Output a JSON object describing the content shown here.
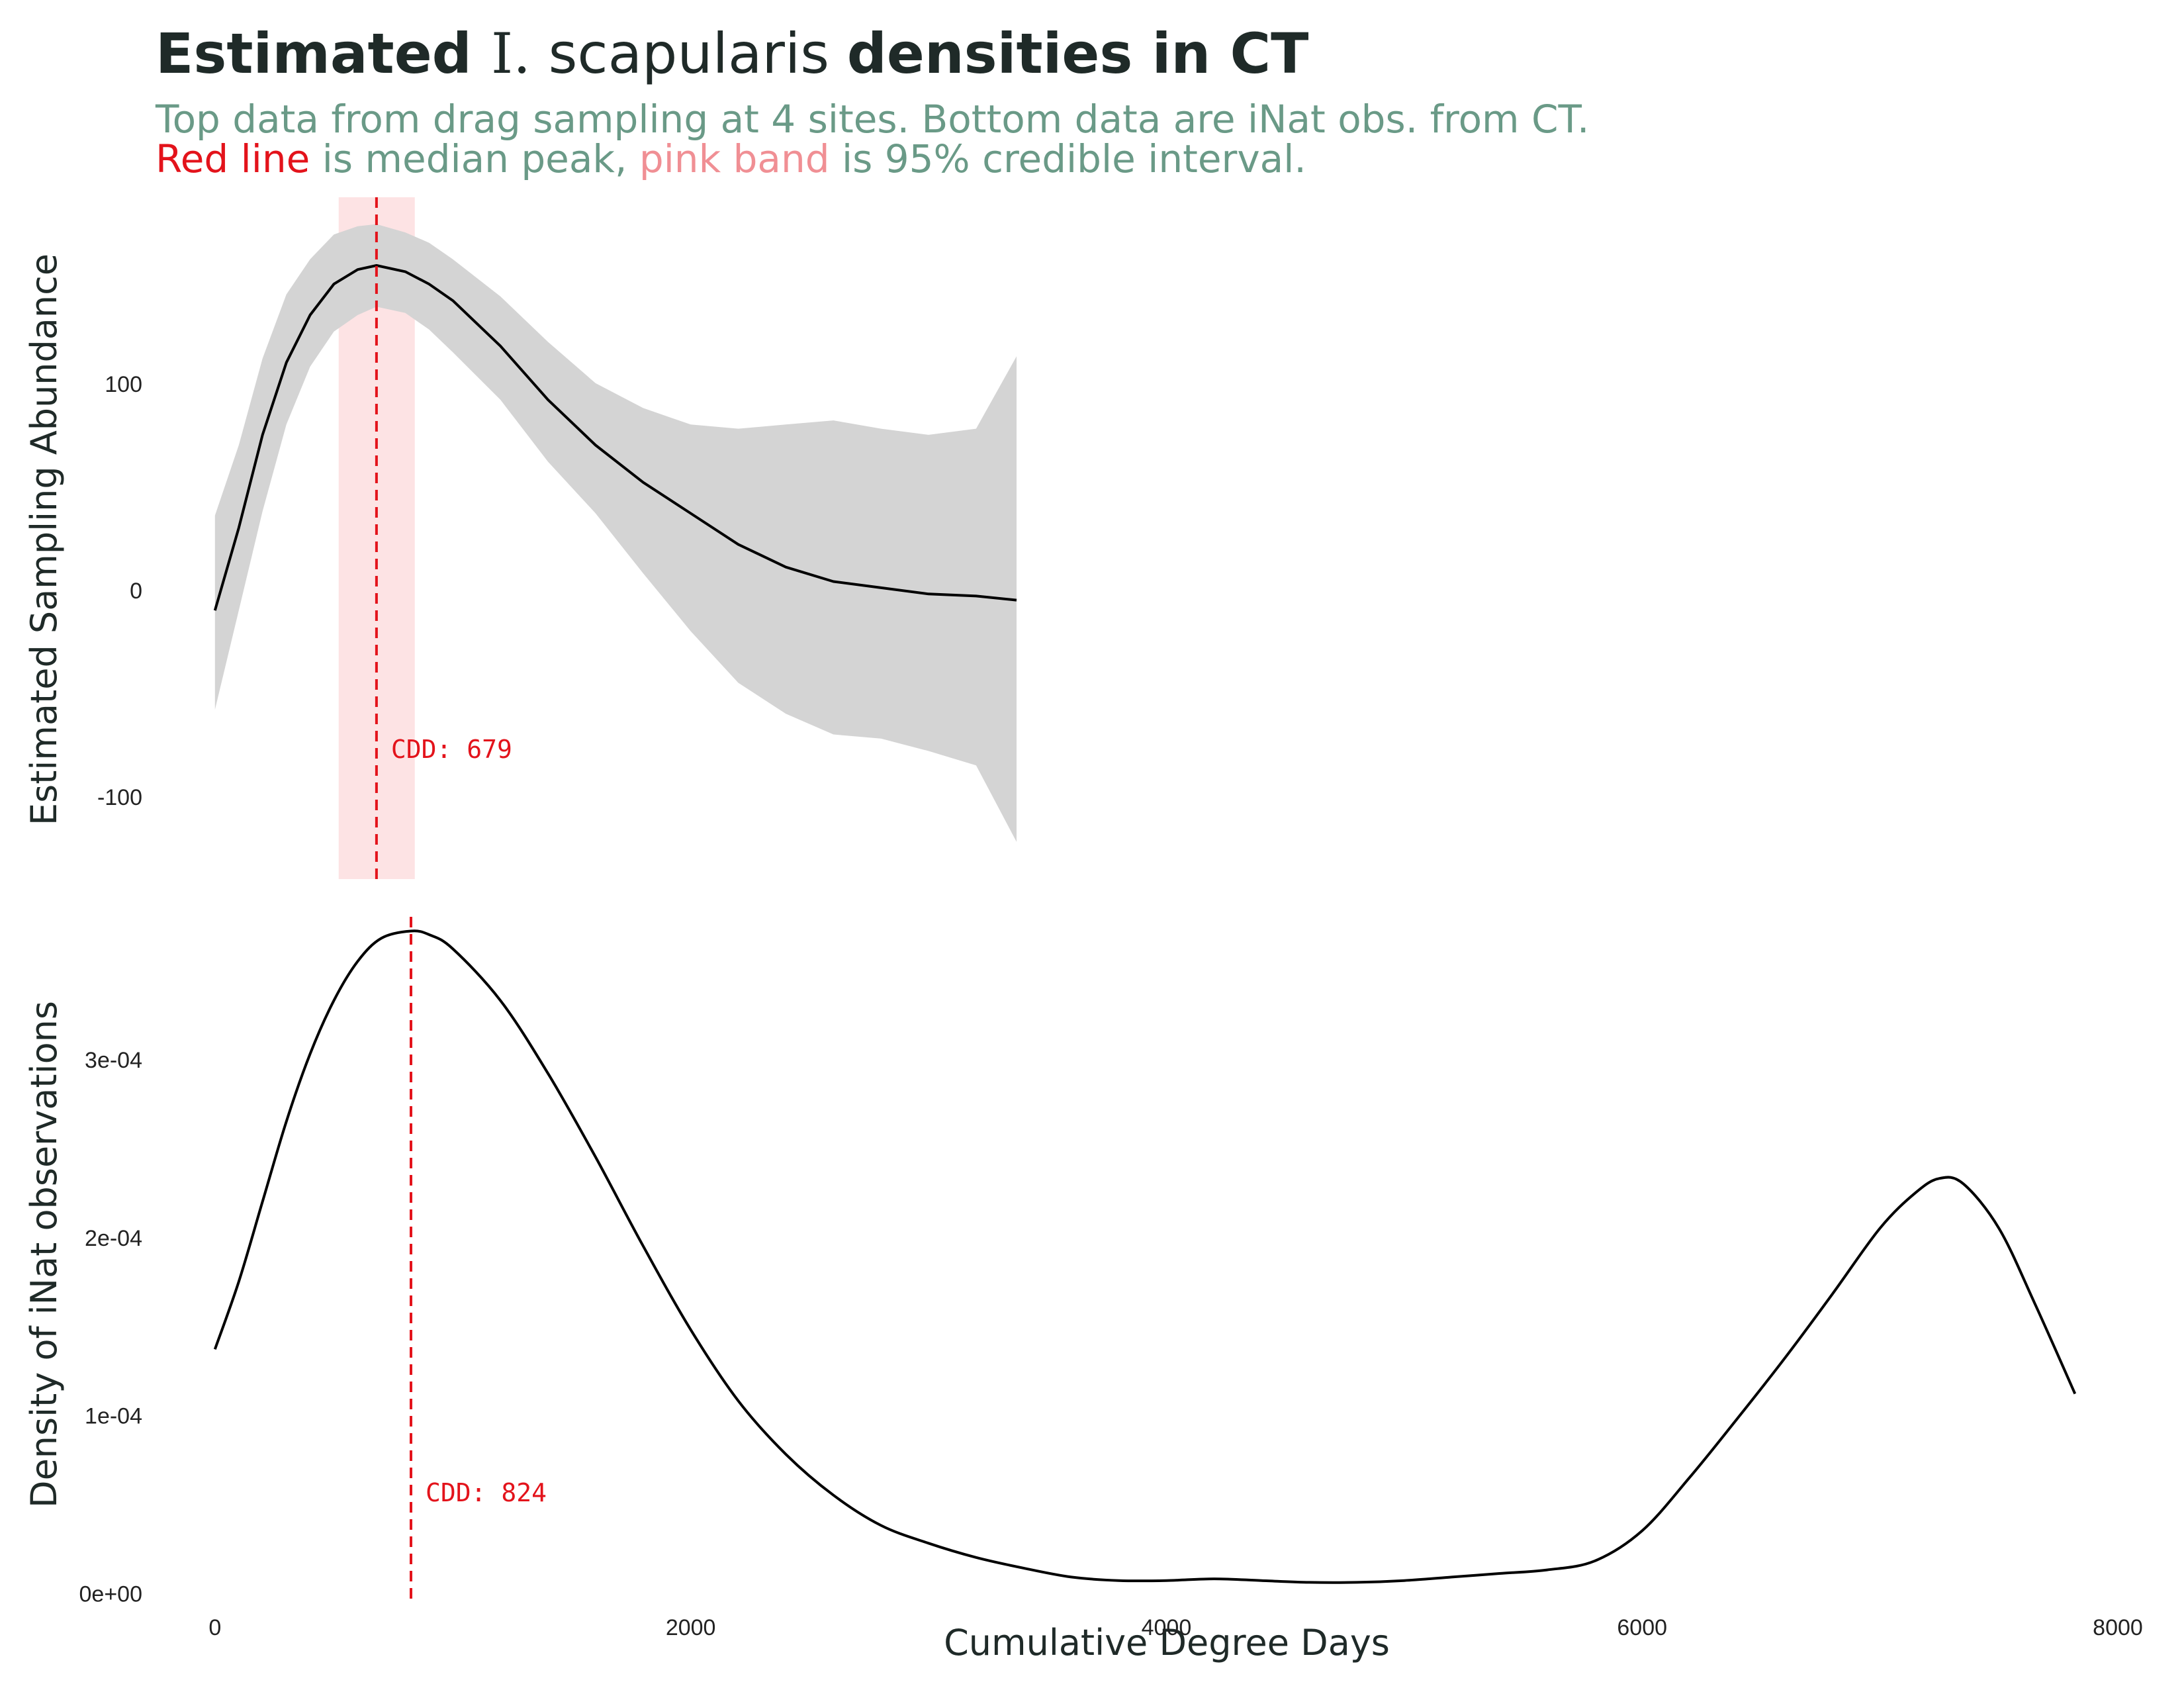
{
  "title": {
    "part1": "Estimated ",
    "part2": "I.",
    "part3": " scapularis ",
    "part4": "densities in CT"
  },
  "subtitle": {
    "line1": "Top data from drag sampling at 4 sites. Bottom data are iNat obs. from CT.",
    "line2_red": "Red line",
    "line2_a": " is median peak, ",
    "line2_pink": "pink band",
    "line2_b": " is 95% credible interval."
  },
  "colors": {
    "title": "#1f2a28",
    "subtitle": "#6a9a87",
    "red": "#e3131b",
    "pink_text": "#f08f94",
    "pink_band": "#fde3e4",
    "ribbon": "#d4d4d4",
    "line": "#000000"
  },
  "chart_data": [
    {
      "type": "line",
      "panel": "top",
      "ylabel": "Estimated Sampling Abundance",
      "xlim": [
        -250,
        8000
      ],
      "ylim": [
        -140,
        190
      ],
      "yticks": [
        -100,
        0,
        100
      ],
      "ytick_labels": [
        "-100",
        "0",
        "100"
      ],
      "x": [
        0,
        100,
        200,
        300,
        400,
        500,
        600,
        679,
        800,
        900,
        1000,
        1200,
        1400,
        1600,
        1800,
        2000,
        2200,
        2400,
        2600,
        2800,
        3000,
        3200,
        3370
      ],
      "y": [
        -10,
        30,
        75,
        110,
        133,
        148,
        155,
        157,
        154,
        148,
        140,
        118,
        92,
        70,
        52,
        37,
        22,
        11,
        4,
        1,
        -2,
        -3,
        -5
      ],
      "lower": [
        -58,
        -10,
        38,
        80,
        108,
        125,
        133,
        137,
        134,
        126,
        115,
        92,
        62,
        37,
        8,
        -20,
        -45,
        -60,
        -70,
        -72,
        -78,
        -85,
        -122
      ],
      "upper": [
        36,
        70,
        112,
        143,
        160,
        172,
        176,
        177,
        173,
        168,
        160,
        142,
        120,
        100,
        88,
        80,
        78,
        80,
        82,
        78,
        75,
        78,
        113
      ],
      "median_peak": 679,
      "credible_interval": [
        520,
        840
      ],
      "annotation": "CDD: 679"
    },
    {
      "type": "line",
      "panel": "bottom",
      "xlabel": "Cumulative Degree Days",
      "ylabel": "Density of iNat observations",
      "xlim": [
        -250,
        8000
      ],
      "ylim": [
        -5e-06,
        0.00038
      ],
      "xticks": [
        0,
        2000,
        4000,
        6000,
        8000
      ],
      "xtick_labels": [
        "0",
        "2000",
        "4000",
        "6000",
        "8000"
      ],
      "yticks": [
        0,
        0.0001,
        0.0002,
        0.0003
      ],
      "ytick_labels": [
        "0e+00",
        "1e-04",
        "2e-04",
        "3e-04"
      ],
      "x": [
        0,
        100,
        200,
        300,
        400,
        500,
        600,
        700,
        824,
        900,
        1000,
        1200,
        1400,
        1600,
        1800,
        2000,
        2200,
        2400,
        2600,
        2800,
        3000,
        3200,
        3400,
        3600,
        3800,
        4000,
        4200,
        4400,
        4600,
        4800,
        5000,
        5200,
        5400,
        5600,
        5800,
        6000,
        6200,
        6400,
        6600,
        6800,
        7000,
        7150,
        7250,
        7350,
        7500,
        7650,
        7820
      ],
      "y": [
        0.000137,
        0.000175,
        0.00022,
        0.000265,
        0.000303,
        0.000333,
        0.000355,
        0.000368,
        0.000372,
        0.00037,
        0.000362,
        0.000333,
        0.000292,
        0.000245,
        0.000195,
        0.000148,
        0.000108,
        7.8e-05,
        5.5e-05,
        3.8e-05,
        2.8e-05,
        2e-05,
        1.4e-05,
        9e-06,
        7e-06,
        7e-06,
        8e-06,
        7e-06,
        6e-06,
        6e-06,
        7e-06,
        9e-06,
        1.1e-05,
        1.3e-05,
        1.8e-05,
        3.5e-05,
        6.5e-05,
        9.8e-05,
        0.000132,
        0.000168,
        0.000205,
        0.000225,
        0.000233,
        0.00023,
        0.000205,
        0.000163,
        0.000112
      ],
      "median_peak": 824,
      "annotation": "CDD: 824"
    }
  ]
}
